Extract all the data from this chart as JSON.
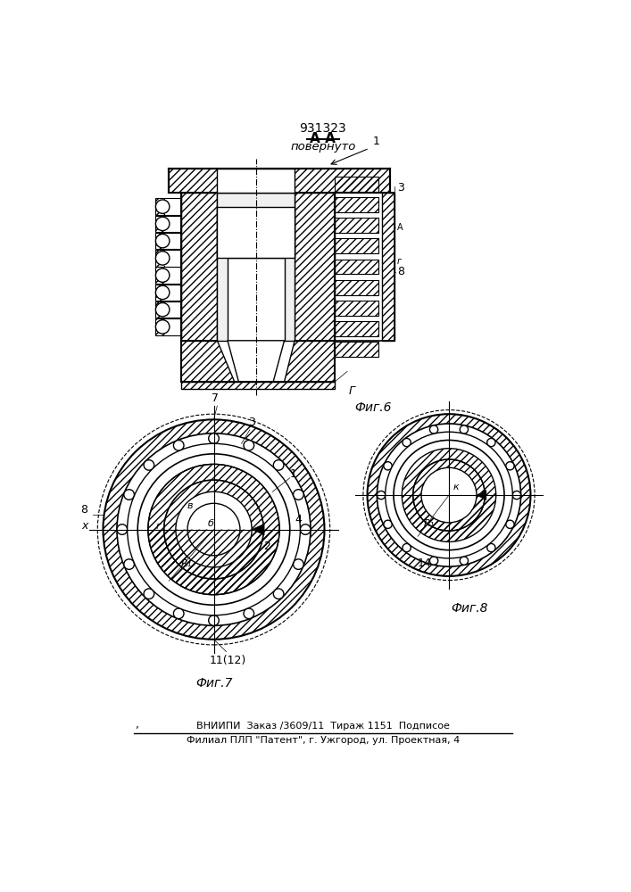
{
  "patent_number": "931323",
  "section_label": "А-А",
  "section_sublabel": "повернуто",
  "fig6_label": "Фиг.6",
  "fig7_label": "Фиг.7",
  "fig8_label": "Фиг.8",
  "footer_line1": "ВНИИПИ  Заказ /3609/11  Тираж 1151  Подписое",
  "footer_line2": "Филиал ПЛП \"Патент\", г. Ужгород, ул. Проектная, 4",
  "bg_color": "#ffffff",
  "line_color": "#000000"
}
